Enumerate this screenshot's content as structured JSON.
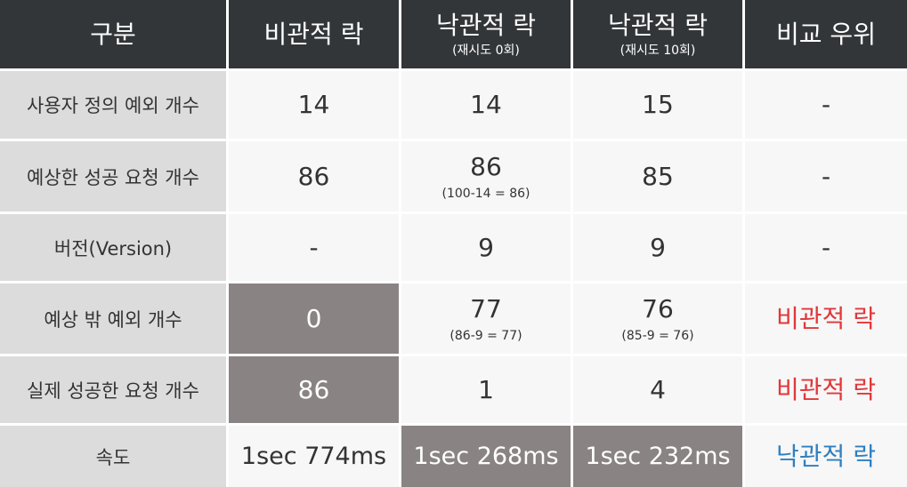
{
  "header": {
    "category": "구분",
    "pessimistic": "비관적 락",
    "optimistic0": "낙관적 락",
    "optimistic0_sub": "(재시도 0회)",
    "optimistic10": "낙관적 락",
    "optimistic10_sub": "(재시도 10회)",
    "winner": "비교 우위"
  },
  "rows": [
    {
      "label": "사용자 정의 예외 개수",
      "pessimistic": "14",
      "optimistic0": "14",
      "optimistic10": "15",
      "winner": "-"
    },
    {
      "label": "예상한 성공 요청 개수",
      "pessimistic": "86",
      "optimistic0": "86",
      "optimistic0_sub": "(100-14 = 86)",
      "optimistic10": "85",
      "winner": "-"
    },
    {
      "label": "버전(Version)",
      "pessimistic": "-",
      "optimistic0": "9",
      "optimistic10": "9",
      "winner": "-"
    },
    {
      "label": "예상 밖 예외 개수",
      "pessimistic": "0",
      "optimistic0": "77",
      "optimistic0_sub": "(86-9 = 77)",
      "optimistic10": "76",
      "optimistic10_sub": "(85-9 = 76)",
      "winner": "비관적 락"
    },
    {
      "label": "실제 성공한 요청 개수",
      "pessimistic": "86",
      "optimistic0": "1",
      "optimistic10": "4",
      "winner": "비관적 락"
    },
    {
      "label": "속도",
      "pessimistic": "1sec 774ms",
      "optimistic0": "1sec 268ms",
      "optimistic10": "1sec 232ms",
      "winner": "낙관적 락"
    }
  ],
  "colors": {
    "header_bg": "#333639",
    "label_bg": "#dcdcdc",
    "value_bg": "#f7f7f7",
    "highlight_bg": "#898384",
    "winner_red": "#e2373a",
    "winner_blue": "#2f7fc0"
  }
}
